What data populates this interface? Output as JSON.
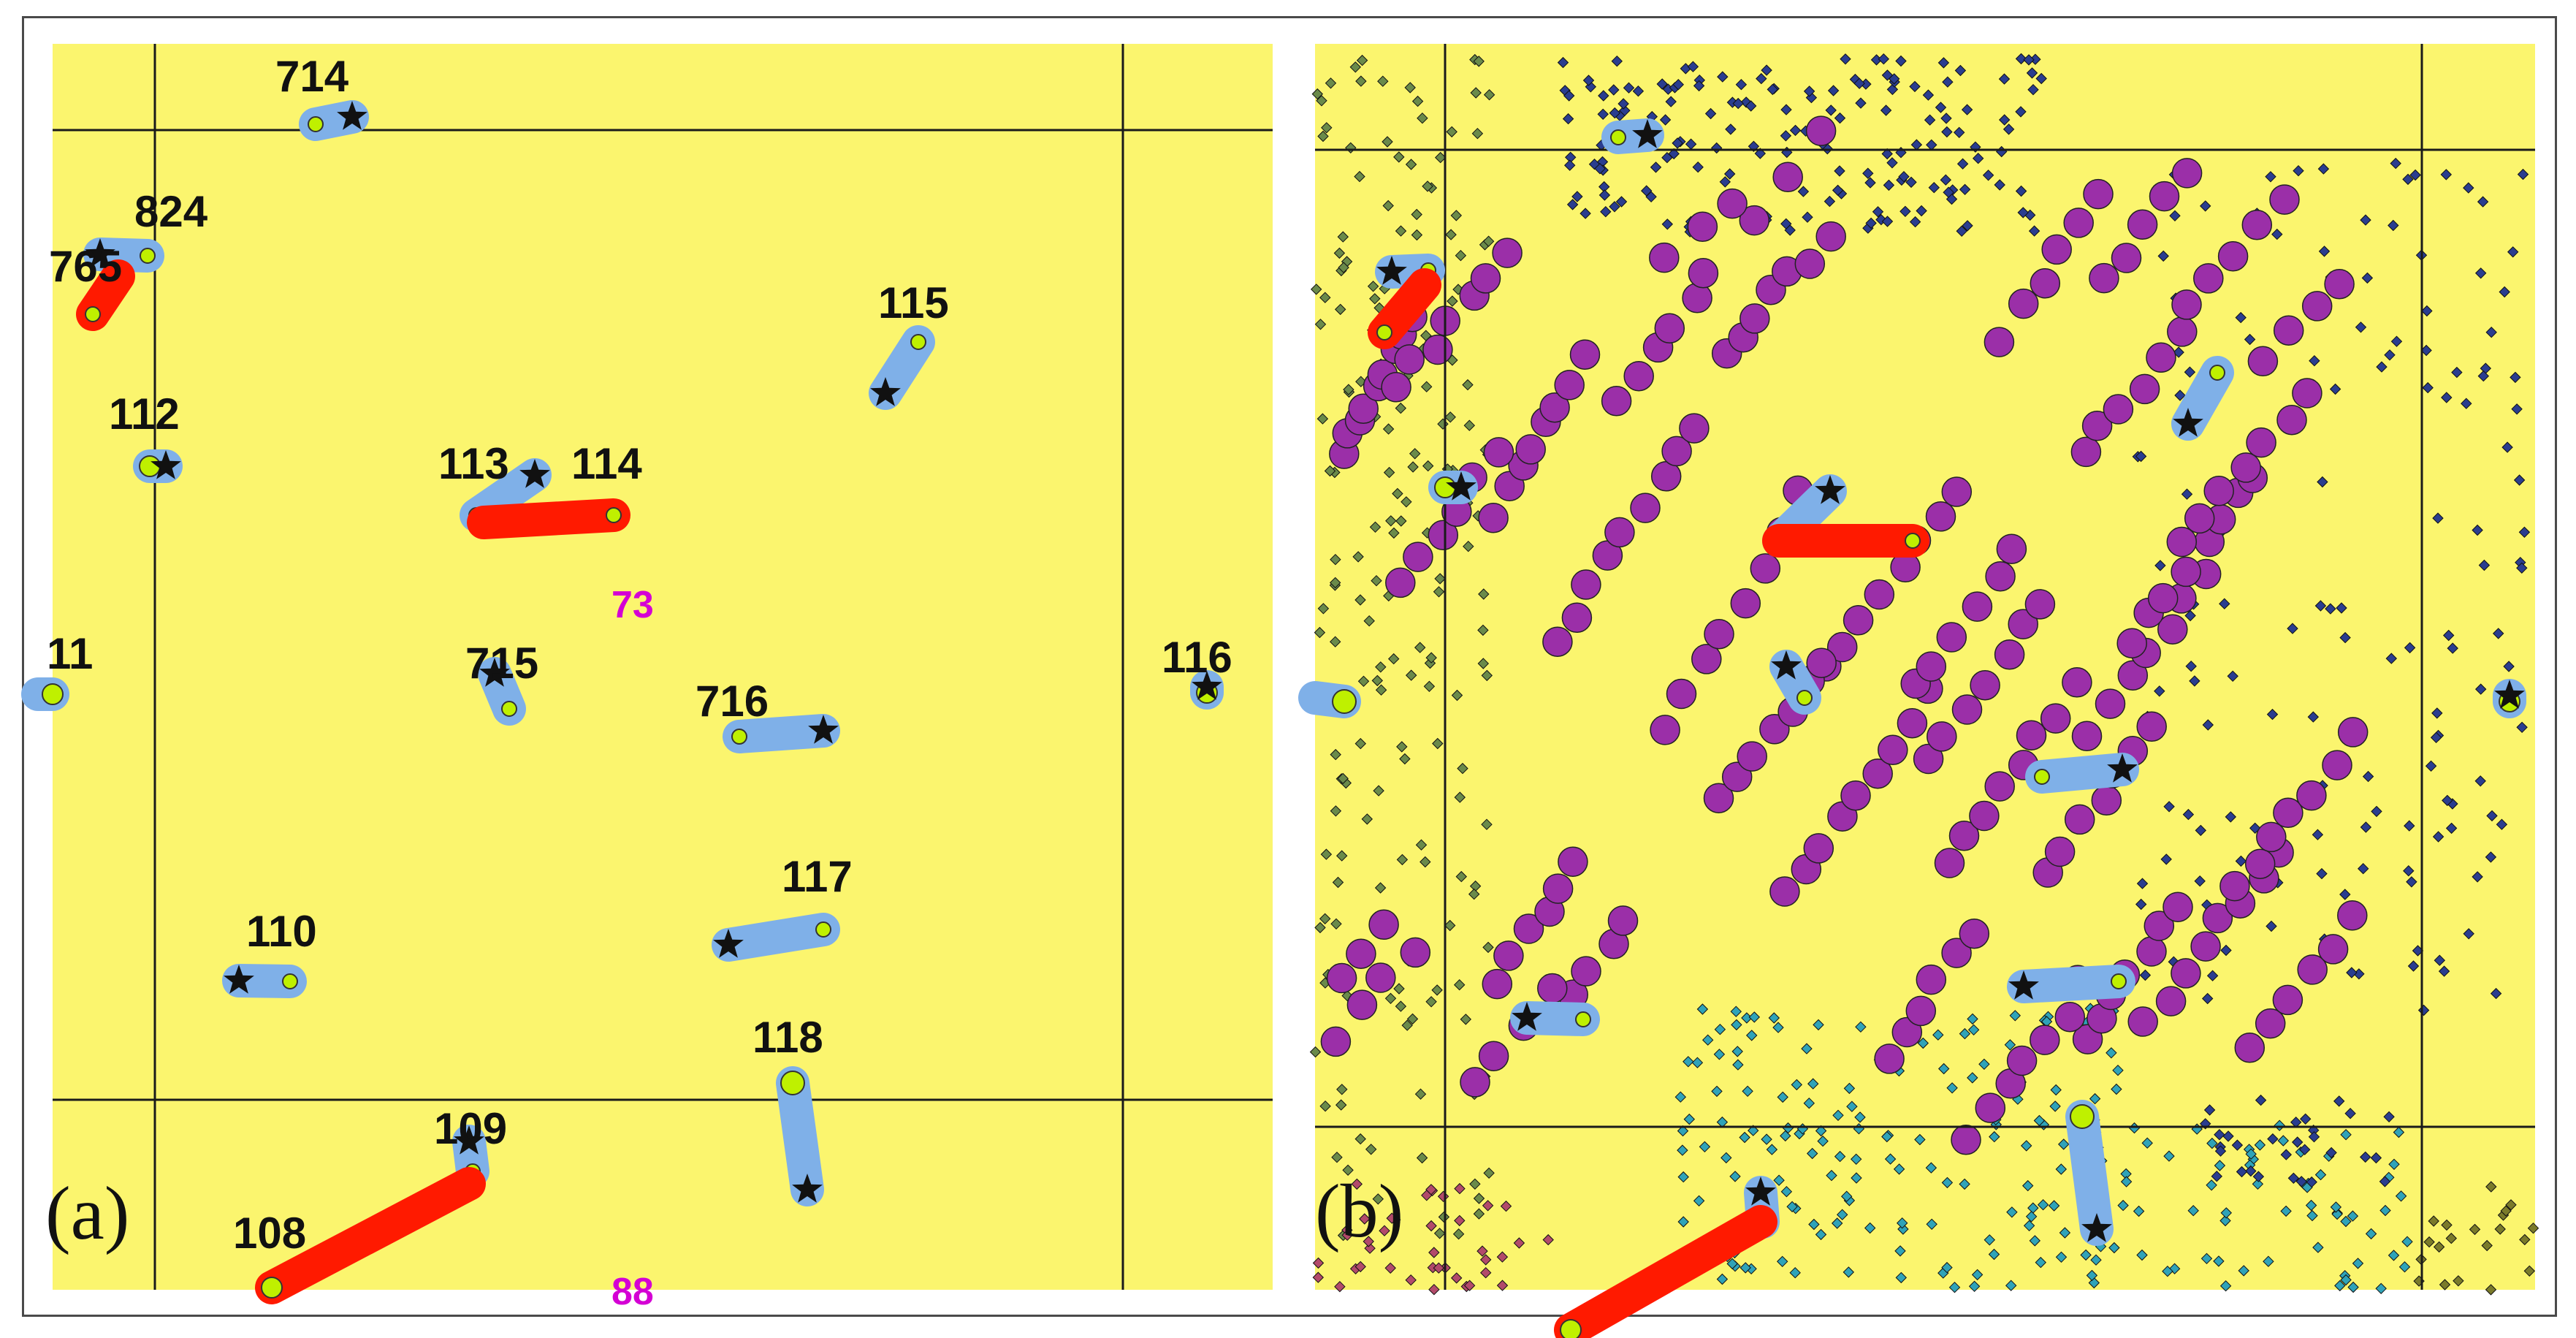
{
  "figure": {
    "panels": [
      {
        "id": "a",
        "label": "(a)"
      },
      {
        "id": "b",
        "label": "(b)"
      }
    ]
  },
  "panel_a": {
    "well_labels": [
      "714",
      "824",
      "765",
      "115",
      "112",
      "113",
      "114",
      "11",
      "715",
      "716",
      "116",
      "117",
      "110",
      "118",
      "109",
      "108"
    ],
    "cell_labels": [
      "73",
      "88"
    ]
  },
  "colors": {
    "background": "#fbf56e",
    "grid_line": "#1a1a1a",
    "producer_pair": "#7fb0e8",
    "injector_pair": "#ff1a00",
    "well_head": "#bff000",
    "bottom_star": "#111111",
    "cell_label": "#d400d4",
    "purple_cells": "#9b2fa8",
    "small_diamonds": [
      "#2a3d8f",
      "#6a8a4a",
      "#2fa3b8",
      "#b24a6a",
      "#7a7a2a"
    ]
  },
  "legend_icons": {
    "head_marker": "circle-icon",
    "bottom_marker": "star-icon"
  }
}
